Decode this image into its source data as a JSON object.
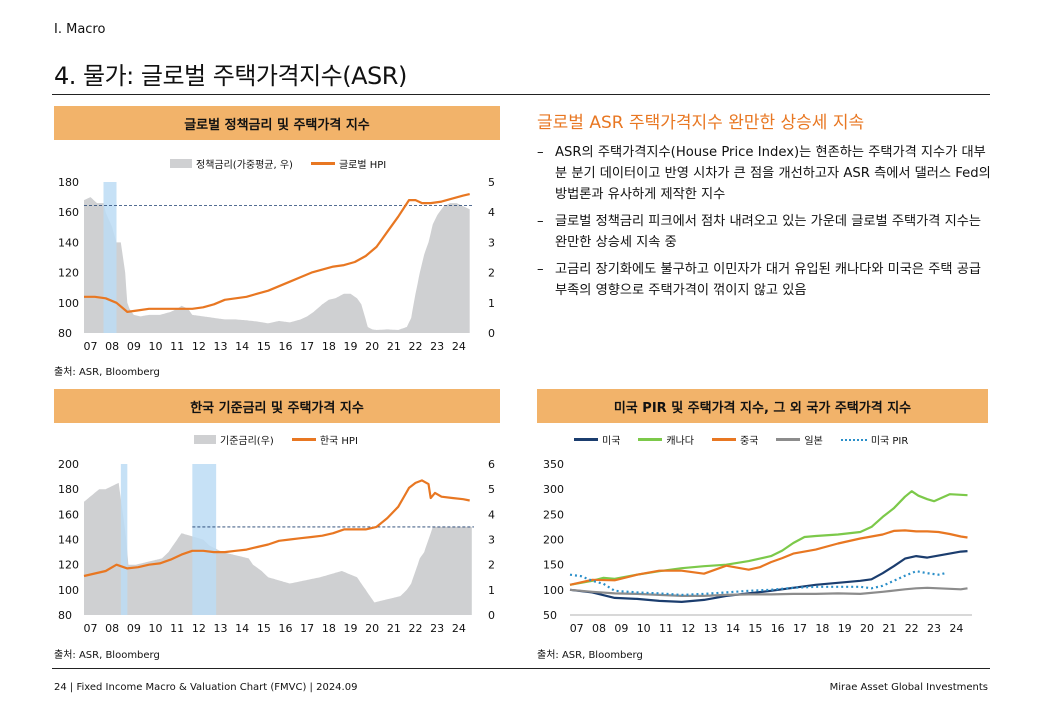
{
  "header": {
    "section": "I. Macro",
    "title": "4. 물가: 글로벌 주택가격지수(ASR)"
  },
  "footer": {
    "left": "24 | Fixed Income Macro & Valuation Chart (FMVC) | 2024.09",
    "right": "Mirae Asset Global Investments"
  },
  "summary": {
    "title": "글로벌 ASR 주택가격지수 완만한 상승세 지속",
    "bullets": [
      "ASR의 주택가격지수(House Price Index)는 현존하는 주택가격 지수가 대부분 분기 데이터이고 반영 시차가 큰 점을 개선하고자 ASR 측에서 댈러스 Fed의 방법론과 유사하게 제작한 지수",
      "글로벌 정책금리 피크에서 점차 내려오고 있는 가운데 글로벌 주택가격 지수는 완만한 상승세 지속 중",
      "고금리 장기화에도 불구하고 이민자가 대거 유입된 캐나다와 미국은 주택 공급 부족의 영향으로 주택가격이 꺾이지 않고 있음"
    ]
  },
  "colors": {
    "header_bg": "#f2b36a",
    "hpi": "#e87722",
    "rate": "#cfd0d2",
    "shade": "#bcdcf5",
    "us": "#1b3d6e",
    "canada": "#7cc94a",
    "china": "#e87722",
    "japan": "#8c8c8c",
    "pir": "#2b8fc9",
    "accent": "#e87722"
  },
  "chart_data": [
    {
      "id": "global",
      "type": "bar+line",
      "title": "글로벌 정책금리 및 주택가격 지수",
      "source": "출처: ASR, Bloomberg",
      "x_ticks": [
        "07",
        "08",
        "09",
        "10",
        "11",
        "12",
        "13",
        "14",
        "15",
        "16",
        "17",
        "18",
        "19",
        "20",
        "21",
        "22",
        "23",
        "24"
      ],
      "xlim": [
        2007.0,
        2025.0
      ],
      "y_left": {
        "ticks": [
          "180",
          "160",
          "140",
          "120",
          "100",
          "80"
        ],
        "lim": [
          80,
          180
        ]
      },
      "y_right": {
        "ticks": [
          "5",
          "4",
          "3",
          "2",
          "1",
          "0"
        ],
        "lim": [
          0,
          5
        ]
      },
      "shade_ranges": [
        [
          2007.9,
          2008.5
        ]
      ],
      "ref_line_left": 164.5,
      "rate_series": {
        "name": "정책금리(가중평균, 우)",
        "x": [
          2007.0,
          2007.3,
          2007.6,
          2007.9,
          2008.0,
          2008.3,
          2008.5,
          2008.7,
          2008.9,
          2009.0,
          2009.1,
          2009.3,
          2009.6,
          2010.0,
          2010.5,
          2011.0,
          2011.3,
          2011.5,
          2011.8,
          2012.0,
          2012.5,
          2013.0,
          2013.5,
          2014.0,
          2014.5,
          2015.0,
          2015.5,
          2016.0,
          2016.5,
          2017.0,
          2017.3,
          2017.6,
          2018.0,
          2018.3,
          2018.6,
          2019.0,
          2019.3,
          2019.6,
          2019.8,
          2020.1,
          2020.3,
          2020.5,
          2021.0,
          2021.5,
          2021.9,
          2022.1,
          2022.3,
          2022.5,
          2022.7,
          2022.9,
          2023.1,
          2023.3,
          2023.6,
          2023.9,
          2024.2,
          2024.5,
          2024.8
        ],
        "values": [
          4.4,
          4.5,
          4.3,
          4.3,
          4.0,
          3.5,
          3.0,
          3.0,
          2.0,
          1.0,
          0.8,
          0.6,
          0.55,
          0.6,
          0.6,
          0.7,
          0.8,
          0.9,
          0.8,
          0.6,
          0.55,
          0.5,
          0.45,
          0.45,
          0.42,
          0.38,
          0.32,
          0.4,
          0.35,
          0.45,
          0.55,
          0.7,
          0.95,
          1.1,
          1.15,
          1.3,
          1.3,
          1.15,
          0.95,
          0.2,
          0.12,
          0.1,
          0.12,
          0.1,
          0.2,
          0.5,
          1.3,
          2.0,
          2.6,
          3.0,
          3.6,
          3.9,
          4.2,
          4.3,
          4.3,
          4.2,
          4.1
        ]
      },
      "line_series": {
        "name": "글로벌 HPI",
        "x": [
          2007.0,
          2007.5,
          2008.0,
          2008.5,
          2009.0,
          2009.5,
          2010.0,
          2010.5,
          2011.0,
          2011.5,
          2012.0,
          2012.5,
          2013.0,
          2013.5,
          2014.0,
          2014.5,
          2015.0,
          2015.5,
          2016.0,
          2016.5,
          2017.0,
          2017.5,
          2018.0,
          2018.5,
          2019.0,
          2019.5,
          2020.0,
          2020.5,
          2021.0,
          2021.5,
          2022.0,
          2022.3,
          2022.6,
          2023.0,
          2023.5,
          2024.0,
          2024.5,
          2024.8
        ],
        "values": [
          104,
          104,
          103,
          100,
          94,
          95,
          96,
          96,
          96,
          96,
          96,
          97,
          99,
          102,
          103,
          104,
          106,
          108,
          111,
          114,
          117,
          120,
          122,
          124,
          125,
          127,
          131,
          137,
          147,
          157,
          168,
          168,
          166,
          166,
          167,
          169,
          171,
          172
        ]
      }
    },
    {
      "id": "korea",
      "type": "bar+line",
      "title": "한국 기준금리 및 주택가격 지수",
      "source": "출처: ASR, Bloomberg",
      "x_ticks": [
        "07",
        "08",
        "09",
        "10",
        "11",
        "12",
        "13",
        "14",
        "15",
        "16",
        "17",
        "18",
        "19",
        "20",
        "21",
        "22",
        "23",
        "24"
      ],
      "xlim": [
        2007.0,
        2025.0
      ],
      "y_left": {
        "ticks": [
          "200",
          "180",
          "160",
          "140",
          "120",
          "100",
          "80"
        ],
        "lim": [
          80,
          200
        ]
      },
      "y_right": {
        "ticks": [
          "6",
          "5",
          "4",
          "3",
          "2",
          "1",
          "0"
        ],
        "lim": [
          0,
          6
        ]
      },
      "shade_ranges": [
        [
          2008.7,
          2009.0
        ],
        [
          2012.0,
          2013.1
        ]
      ],
      "ref_line_left": 150,
      "ref_line_start": 2012.0,
      "rate_series": {
        "name": "기준금리(우)",
        "x": [
          2007.0,
          2007.7,
          2008.0,
          2008.6,
          2008.8,
          2008.95,
          2009.05,
          2009.4,
          2010.6,
          2010.9,
          2011.1,
          2011.3,
          2011.5,
          2012.5,
          2012.8,
          2013.4,
          2014.6,
          2014.8,
          2015.2,
          2015.5,
          2016.5,
          2017.9,
          2018.9,
          2019.6,
          2019.8,
          2020.2,
          2020.4,
          2021.6,
          2021.9,
          2022.1,
          2022.3,
          2022.5,
          2022.7,
          2022.9,
          2023.1,
          2024.9
        ],
        "values": [
          4.5,
          5.0,
          5.0,
          5.25,
          4.0,
          3.0,
          2.0,
          2.0,
          2.25,
          2.5,
          2.75,
          3.0,
          3.25,
          3.0,
          2.75,
          2.5,
          2.25,
          2.0,
          1.75,
          1.5,
          1.25,
          1.5,
          1.75,
          1.5,
          1.25,
          0.75,
          0.5,
          0.75,
          1.0,
          1.25,
          1.75,
          2.25,
          2.5,
          3.0,
          3.5,
          3.5
        ]
      },
      "line_series": {
        "name": "한국 HPI",
        "x": [
          2007.0,
          2007.5,
          2008.0,
          2008.5,
          2009.0,
          2009.5,
          2010.0,
          2010.5,
          2011.0,
          2011.5,
          2012.0,
          2012.5,
          2013.0,
          2013.5,
          2014.0,
          2014.5,
          2015.0,
          2015.5,
          2016.0,
          2016.5,
          2017.0,
          2017.5,
          2018.0,
          2018.5,
          2019.0,
          2019.5,
          2020.0,
          2020.5,
          2021.0,
          2021.5,
          2021.8,
          2022.0,
          2022.3,
          2022.6,
          2022.9,
          2023.0,
          2023.2,
          2023.5,
          2024.0,
          2024.5,
          2024.8
        ],
        "values": [
          111,
          113,
          115,
          120,
          117,
          118,
          120,
          121,
          124,
          128,
          131,
          131,
          130,
          130,
          131,
          132,
          134,
          136,
          139,
          140,
          141,
          142,
          143,
          145,
          148,
          148,
          148,
          150,
          157,
          166,
          175,
          181,
          185,
          187,
          184,
          173,
          177,
          174,
          173,
          172,
          171
        ]
      }
    },
    {
      "id": "countries",
      "type": "line",
      "title": "미국 PIR 및 주택가격 지수, 그 외 국가 주택가격 지수",
      "source": "출처: ASR, Bloomberg",
      "x_ticks": [
        "07",
        "08",
        "09",
        "10",
        "11",
        "12",
        "13",
        "14",
        "15",
        "16",
        "17",
        "18",
        "19",
        "20",
        "21",
        "22",
        "23",
        "24"
      ],
      "xlim": [
        2007.0,
        2025.0
      ],
      "y": {
        "ticks": [
          "350",
          "300",
          "250",
          "200",
          "150",
          "100",
          "50"
        ],
        "lim": [
          50,
          350
        ]
      },
      "series": [
        {
          "name": "미국",
          "color": "#1b3d6e",
          "dash": false,
          "x": [
            2007.0,
            2008.0,
            2009.0,
            2010.0,
            2011.0,
            2012.0,
            2013.0,
            2014.0,
            2015.0,
            2016.0,
            2017.0,
            2018.0,
            2019.0,
            2020.0,
            2020.5,
            2021.0,
            2021.5,
            2022.0,
            2022.5,
            2023.0,
            2023.5,
            2024.0,
            2024.5,
            2024.8
          ],
          "values": [
            100,
            95,
            84,
            82,
            78,
            76,
            80,
            88,
            93,
            98,
            104,
            110,
            114,
            118,
            121,
            133,
            147,
            162,
            167,
            164,
            168,
            172,
            176,
            177
          ]
        },
        {
          "name": "캐나다",
          "color": "#7cc94a",
          "dash": false,
          "x": [
            2007.0,
            2008.0,
            2008.5,
            2009.0,
            2010.0,
            2011.0,
            2012.0,
            2013.0,
            2014.0,
            2015.0,
            2016.0,
            2016.5,
            2017.0,
            2017.5,
            2018.0,
            2019.0,
            2020.0,
            2020.5,
            2021.0,
            2021.5,
            2022.0,
            2022.3,
            2022.6,
            2023.0,
            2023.3,
            2023.6,
            2024.0,
            2024.4,
            2024.8
          ],
          "values": [
            110,
            118,
            124,
            122,
            130,
            137,
            143,
            147,
            150,
            157,
            167,
            178,
            193,
            205,
            207,
            210,
            215,
            225,
            245,
            262,
            285,
            296,
            287,
            280,
            276,
            282,
            290,
            289,
            288
          ]
        },
        {
          "name": "중국",
          "color": "#e87722",
          "dash": false,
          "x": [
            2007.0,
            2008.0,
            2009.0,
            2010.0,
            2011.0,
            2012.0,
            2013.0,
            2014.0,
            2015.0,
            2015.5,
            2016.0,
            2016.5,
            2017.0,
            2018.0,
            2019.0,
            2020.0,
            2021.0,
            2021.5,
            2022.0,
            2022.5,
            2023.0,
            2023.5,
            2024.0,
            2024.5,
            2024.8
          ],
          "values": [
            110,
            120,
            119,
            130,
            138,
            138,
            132,
            148,
            140,
            145,
            155,
            163,
            172,
            180,
            192,
            202,
            210,
            217,
            218,
            216,
            216,
            215,
            211,
            206,
            204
          ]
        },
        {
          "name": "일본",
          "color": "#8c8c8c",
          "dash": false,
          "x": [
            2007.0,
            2008.0,
            2009.0,
            2010.0,
            2011.0,
            2012.0,
            2013.0,
            2014.0,
            2015.0,
            2016.0,
            2017.0,
            2018.0,
            2019.0,
            2020.0,
            2021.0,
            2022.0,
            2022.5,
            2023.0,
            2023.5,
            2024.0,
            2024.5,
            2024.8
          ],
          "values": [
            100,
            96,
            93,
            92,
            90,
            88,
            88,
            90,
            91,
            91,
            92,
            92,
            93,
            92,
            96,
            101,
            103,
            104,
            103,
            102,
            101,
            103
          ]
        },
        {
          "name": "미국 PIR",
          "color": "#2b8fc9",
          "dash": true,
          "x": [
            2007.0,
            2007.5,
            2008.0,
            2008.5,
            2009.0,
            2010.0,
            2011.0,
            2012.0,
            2013.0,
            2014.0,
            2015.0,
            2016.0,
            2017.0,
            2018.0,
            2019.0,
            2020.0,
            2020.5,
            2021.0,
            2021.5,
            2022.0,
            2022.5,
            2023.0,
            2023.5,
            2023.8
          ],
          "values": [
            130,
            127,
            118,
            112,
            98,
            95,
            93,
            90,
            92,
            95,
            98,
            100,
            104,
            106,
            106,
            106,
            103,
            108,
            118,
            128,
            137,
            133,
            130,
            133
          ]
        }
      ]
    }
  ]
}
